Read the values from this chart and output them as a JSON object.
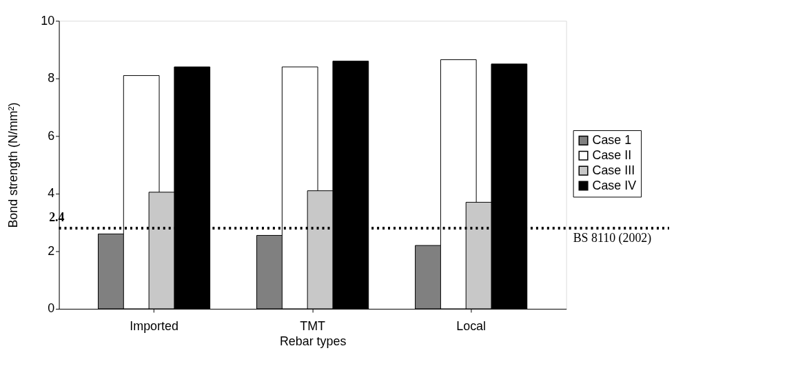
{
  "chart_data": {
    "type": "bar",
    "xlabel": "Rebar types",
    "ylabel": "Bond strength (N/mm²)",
    "categories": [
      "Imported",
      "TMT",
      "Local"
    ],
    "series": [
      {
        "name": "Case 1",
        "color": "#808080",
        "values": [
          2.6,
          2.55,
          2.2
        ]
      },
      {
        "name": "Case II",
        "color": "#ffffff",
        "values": [
          8.1,
          8.4,
          8.65
        ]
      },
      {
        "name": "Case III",
        "color": "#c8c8c8",
        "values": [
          4.05,
          4.1,
          3.7
        ]
      },
      {
        "name": "Case IV",
        "color": "#000000",
        "values": [
          8.4,
          8.6,
          8.5
        ]
      }
    ],
    "ylim": [
      0,
      10
    ],
    "yticks": [
      0,
      2,
      4,
      6,
      8,
      10
    ],
    "grid": false,
    "legend": "right",
    "ref_lines": [
      {
        "axis": "y",
        "value": 2.8,
        "label": "BS 8110 (2002)",
        "color": "#000000",
        "line_style": "dotted"
      }
    ],
    "annotations": [
      {
        "text": "2.4",
        "y": 2.8
      }
    ]
  }
}
